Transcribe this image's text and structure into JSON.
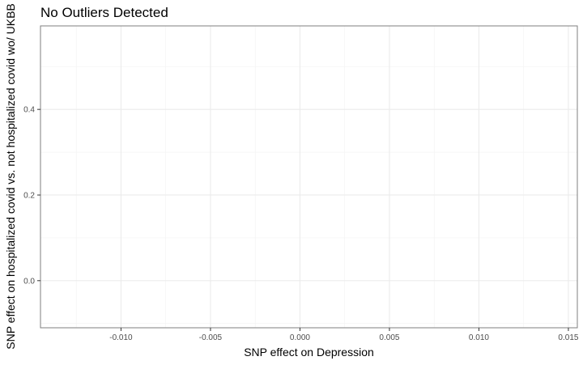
{
  "chart_data": {
    "type": "scatter",
    "title": "No Outliers Detected",
    "xlabel": "SNP effect on Depression",
    "ylabel": "SNP effect on hospitalized covid vs. not hospitalized covid wo/ UKBB",
    "xlim": [
      -0.0145,
      0.0155
    ],
    "ylim": [
      -0.11,
      0.595
    ],
    "x_ticks": [
      -0.01,
      -0.005,
      0.0,
      0.005,
      0.01,
      0.015
    ],
    "x_tick_labels": [
      "-0.010",
      "-0.005",
      "0.000",
      "0.005",
      "0.010",
      "0.015"
    ],
    "y_ticks": [
      0.0,
      0.2,
      0.4
    ],
    "y_tick_labels": [
      "0.0",
      "0.2",
      "0.4"
    ],
    "grid": true,
    "points": []
  }
}
